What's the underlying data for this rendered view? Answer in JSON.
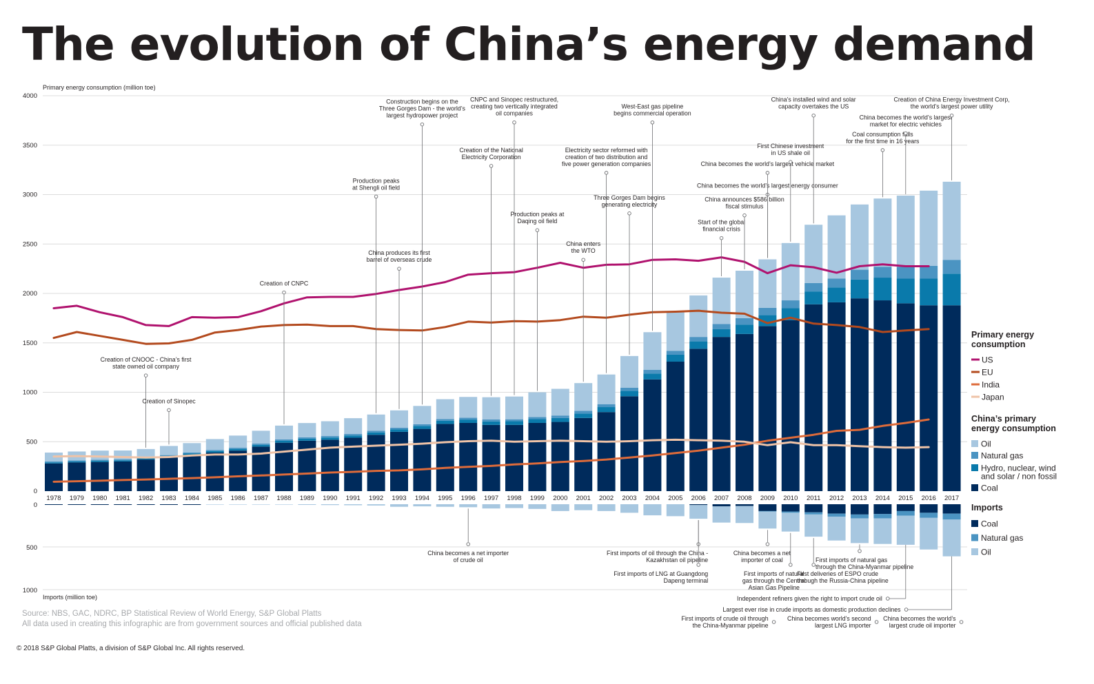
{
  "title": "The evolution of China’s energy demand",
  "source_lines": [
    "Source: NBS, GAC, NDRC, BP Statistical Review of World Energy, S&P Global Platts",
    "All data used in creating this infographic are from government sources and official published data"
  ],
  "copyright": "© 2018 S&P Global Platts, a division of S&P Global Inc. All rights reserved.",
  "colors": {
    "coal": "#002b5c",
    "hydro": "#0a7aab",
    "gas": "#4b94c2",
    "oil": "#a7c7e0",
    "us": "#b0126e",
    "eu": "#b34a1e",
    "india": "#de6b3a",
    "japan": "#efc3a7",
    "grid": "#dcdcdc",
    "leader": "#6d6e71",
    "text": "#231f20"
  },
  "chart_data": {
    "type": "bar",
    "title": "The evolution of China’s energy demand",
    "ylabel": "Primary energy consumption  (million toe)",
    "ylabel_imports": "Imports (million toe)",
    "ylim": [
      0,
      4000
    ],
    "ylim_imports": [
      0,
      1000
    ],
    "yticks": [
      "4000",
      "3500",
      "3000",
      "2500",
      "2000",
      "1500",
      "1000",
      "500",
      "0"
    ],
    "yticks_imports": [
      "0",
      "500",
      "1000"
    ],
    "categories": [
      "1978",
      "1979",
      "1980",
      "1981",
      "1982",
      "1983",
      "1984",
      "1985",
      "1986",
      "1987",
      "1988",
      "1989",
      "1990",
      "1991",
      "1992",
      "1993",
      "1994",
      "1995",
      "1996",
      "1997",
      "1998",
      "1999",
      "2000",
      "2001",
      "2002",
      "2003",
      "2004",
      "2005",
      "2006",
      "2007",
      "2008",
      "2009",
      "2010",
      "2011",
      "2012",
      "2013",
      "2014",
      "2015",
      "2016",
      "2017"
    ],
    "stacked_series": [
      {
        "name": "Coal",
        "key": "coal",
        "values": [
          280,
          290,
          295,
          300,
          320,
          340,
          365,
          390,
          410,
          450,
          490,
          510,
          520,
          540,
          570,
          600,
          630,
          680,
          690,
          670,
          670,
          690,
          700,
          740,
          800,
          960,
          1130,
          1310,
          1440,
          1560,
          1590,
          1670,
          1730,
          1890,
          1910,
          1950,
          1930,
          1900,
          1880,
          1880
        ]
      },
      {
        "name": "Hydro, nuclear, wind and solar / non fossil",
        "key": "hydro",
        "values": [
          10,
          10,
          12,
          12,
          13,
          14,
          15,
          15,
          17,
          18,
          19,
          20,
          22,
          23,
          24,
          26,
          30,
          32,
          34,
          35,
          37,
          38,
          40,
          45,
          50,
          55,
          60,
          70,
          75,
          80,
          95,
          110,
          120,
          130,
          150,
          190,
          230,
          250,
          270,
          320
        ]
      },
      {
        "name": "Natural gas",
        "key": "gas",
        "values": [
          10,
          11,
          11,
          11,
          11,
          11,
          11,
          12,
          13,
          13,
          14,
          14,
          15,
          15,
          16,
          16,
          17,
          18,
          19,
          20,
          20,
          22,
          25,
          28,
          30,
          32,
          38,
          40,
          45,
          50,
          65,
          75,
          80,
          85,
          90,
          100,
          110,
          120,
          130,
          140
        ]
      },
      {
        "name": "Oil",
        "key": "oil",
        "values": [
          90,
          90,
          92,
          88,
          82,
          92,
          95,
          110,
          122,
          130,
          140,
          145,
          150,
          160,
          165,
          175,
          185,
          200,
          210,
          225,
          230,
          250,
          270,
          280,
          300,
          320,
          380,
          400,
          420,
          470,
          480,
          490,
          580,
          590,
          640,
          660,
          690,
          720,
          760,
          790
        ]
      }
    ],
    "line_series": [
      {
        "name": "US",
        "key": "us",
        "values": [
          1850,
          1875,
          1810,
          1760,
          1680,
          1670,
          1760,
          1755,
          1760,
          1820,
          1900,
          1960,
          1965,
          1965,
          1995,
          2035,
          2070,
          2115,
          2190,
          2205,
          2215,
          2260,
          2310,
          2260,
          2290,
          2295,
          2340,
          2345,
          2330,
          2365,
          2320,
          2205,
          2285,
          2265,
          2210,
          2275,
          2295,
          2275,
          2275,
          null
        ]
      },
      {
        "name": "EU",
        "key": "eu",
        "values": [
          1550,
          1610,
          1570,
          1530,
          1490,
          1495,
          1530,
          1605,
          1630,
          1665,
          1680,
          1685,
          1670,
          1670,
          1640,
          1630,
          1625,
          1660,
          1715,
          1705,
          1720,
          1715,
          1730,
          1765,
          1755,
          1785,
          1810,
          1815,
          1825,
          1805,
          1795,
          1700,
          1755,
          1695,
          1680,
          1660,
          1610,
          1625,
          1640,
          null
        ]
      },
      {
        "name": "India",
        "key": "india",
        "values": [
          95,
          100,
          105,
          112,
          118,
          125,
          132,
          140,
          150,
          158,
          168,
          178,
          188,
          195,
          205,
          210,
          220,
          235,
          245,
          255,
          270,
          280,
          295,
          305,
          320,
          340,
          360,
          385,
          410,
          440,
          470,
          510,
          540,
          570,
          610,
          620,
          660,
          690,
          725,
          null
        ]
      },
      {
        "name": "Japan",
        "key": "japan",
        "values": [
          350,
          355,
          350,
          345,
          340,
          345,
          360,
          370,
          370,
          380,
          400,
          420,
          440,
          450,
          460,
          470,
          480,
          495,
          505,
          510,
          500,
          505,
          510,
          505,
          500,
          505,
          515,
          520,
          515,
          510,
          500,
          465,
          495,
          465,
          465,
          455,
          445,
          440,
          445,
          null
        ]
      }
    ],
    "imports_series": [
      {
        "name": "Coal",
        "key": "coal",
        "values": [
          0,
          0,
          0,
          0,
          0,
          0,
          0,
          0,
          0,
          0,
          0,
          0,
          0,
          0,
          0,
          0,
          0,
          0,
          0,
          0,
          0,
          0,
          0,
          0,
          0,
          0,
          0,
          0,
          10,
          25,
          20,
          80,
          85,
          95,
          110,
          120,
          115,
          80,
          100,
          110
        ]
      },
      {
        "name": "Natural gas",
        "key": "gas",
        "values": [
          0,
          0,
          0,
          0,
          0,
          0,
          0,
          0,
          0,
          0,
          0,
          0,
          0,
          0,
          0,
          0,
          0,
          0,
          0,
          0,
          0,
          0,
          0,
          0,
          0,
          0,
          0,
          0,
          0,
          0,
          0,
          5,
          15,
          25,
          35,
          45,
          50,
          55,
          60,
          70
        ]
      },
      {
        "name": "Oil",
        "key": "oil",
        "values": [
          0,
          0,
          0,
          0,
          0,
          0,
          0,
          5,
          5,
          5,
          5,
          8,
          10,
          12,
          15,
          30,
          25,
          30,
          35,
          50,
          45,
          55,
          80,
          70,
          80,
          100,
          130,
          140,
          160,
          190,
          200,
          200,
          220,
          260,
          280,
          290,
          300,
          340,
          370,
          430
        ]
      }
    ],
    "legend": {
      "primary_title": "Primary energy consumption",
      "china_title": "China’s primary energy consumption",
      "imports_title": "Imports",
      "lines": [
        "US",
        "EU",
        "India",
        "Japan"
      ],
      "china_items": [
        "Oil",
        "Natural gas",
        "Hydro, nuclear, wind and solar / non fossil",
        "Coal"
      ],
      "imports_items": [
        "Coal",
        "Natural gas",
        "Oil"
      ]
    },
    "annotations_top": [
      {
        "year": "1982",
        "value": 1170,
        "lines": [
          "Creation of CNOOC - China’s first",
          "state owned oil company"
        ]
      },
      {
        "year": "1983",
        "value": 820,
        "lines": [
          "Creation of Sinopec"
        ]
      },
      {
        "year": "1988",
        "value": 2010,
        "lines": [
          "Creation of CNPC"
        ]
      },
      {
        "year": "1992",
        "value": 2980,
        "lines": [
          "Production peaks",
          "at Shengli oil field"
        ]
      },
      {
        "year": "1993",
        "value": 2250,
        "lines": [
          "China produces its first",
          "barrel of overseas crude"
        ]
      },
      {
        "year": "1994",
        "value": 3710,
        "lines": [
          "Construction begins on the",
          "Three Gorges Dam - the world’s",
          "largest hydropower project"
        ]
      },
      {
        "year": "1997",
        "value": 3290,
        "lines": [
          "Creation of the National",
          "Electricity Corporation"
        ]
      },
      {
        "year": "1998",
        "value": 3730,
        "lines": [
          "CNPC and Sinopec restructured,",
          "creating two vertically integrated",
          "oil companies"
        ]
      },
      {
        "year": "1999",
        "value": 2640,
        "lines": [
          "Production peaks at",
          "Daqing oil field"
        ]
      },
      {
        "year": "2001",
        "value": 2340,
        "lines": [
          "China enters",
          "the WTO"
        ]
      },
      {
        "year": "2002",
        "value": 3220,
        "lines": [
          "Electricity sector reformed with",
          "creation of two distribution and",
          "five power generation companies"
        ]
      },
      {
        "year": "2003",
        "value": 2810,
        "lines": [
          "Three Gorges Dam begins",
          "generating electricity"
        ]
      },
      {
        "year": "2004",
        "value": 3730,
        "lines": [
          "West-East gas pipeline",
          "begins commercial operation"
        ]
      },
      {
        "year": "2007",
        "value": 2560,
        "lines": [
          "Start of the global",
          "financial crisis"
        ]
      },
      {
        "year": "2008",
        "value": 2790,
        "lines": [
          "China announces $586 billion",
          "fiscal stimulus"
        ]
      },
      {
        "year": "2009",
        "value": 3000,
        "lines": [
          "China becomes the world’s largest energy consumer"
        ]
      },
      {
        "year": "2009",
        "value": 3220,
        "lines": [
          "China becomes the world’s largest vehicle market"
        ]
      },
      {
        "year": "2010",
        "value": 3330,
        "lines": [
          "First Chinese investment",
          "in US shale oil"
        ]
      },
      {
        "year": "2011",
        "value": 3800,
        "lines": [
          "China’s installed wind and solar",
          "capacity overtakes the US"
        ]
      },
      {
        "year": "2014",
        "value": 3450,
        "lines": [
          "Coal consumption falls",
          "for the first time in 16 years"
        ]
      },
      {
        "year": "2015",
        "value": 3620,
        "lines": [
          "China becomes the world’s largest",
          "market for electric vehicles"
        ]
      },
      {
        "year": "2017",
        "value": 3800,
        "lines": [
          "Creation of China Energy Investment Corp,",
          "the world’s largest power utility"
        ]
      }
    ],
    "annotations_bottom": [
      {
        "year": "1996",
        "lines": [
          "China becomes a net importer",
          "of crude oil"
        ]
      },
      {
        "year": "2006",
        "lines": [
          "First imports of oil through the China -",
          "Kazakhstan oil pipeline"
        ]
      },
      {
        "year": "2006",
        "lines": [
          "First imports of LNG at Guangdong",
          "Dapeng terminal"
        ]
      },
      {
        "year": "2009",
        "lines": [
          "China becomes a net",
          "importer of coal"
        ]
      },
      {
        "year": "2010",
        "lines": [
          "First imports of natural",
          "gas through the Central",
          "Asian Gas Pipeline"
        ]
      },
      {
        "year": "2011",
        "lines": [
          "First deliveries of ESPO crude",
          "through the Russia-China pipeline"
        ]
      },
      {
        "year": "2013",
        "lines": [
          "First imports of natural gas",
          "through the China-Myanmar pipeline"
        ]
      },
      {
        "year": "2015",
        "lines": [
          "Independent refiners given the right to import crude oil"
        ]
      },
      {
        "year": "2017",
        "lines": [
          "Largest ever rise in crude imports as domestic production declines"
        ]
      },
      {
        "year": "2017",
        "lines": [
          "First imports of crude oil through",
          "the China-Myanmar pipeline"
        ]
      },
      {
        "year": "2017",
        "lines": [
          "China becomes world’s second",
          "largest LNG importer"
        ]
      },
      {
        "year": "2017",
        "lines": [
          "China becomes the world’s",
          "largest crude oil importer"
        ]
      }
    ]
  }
}
